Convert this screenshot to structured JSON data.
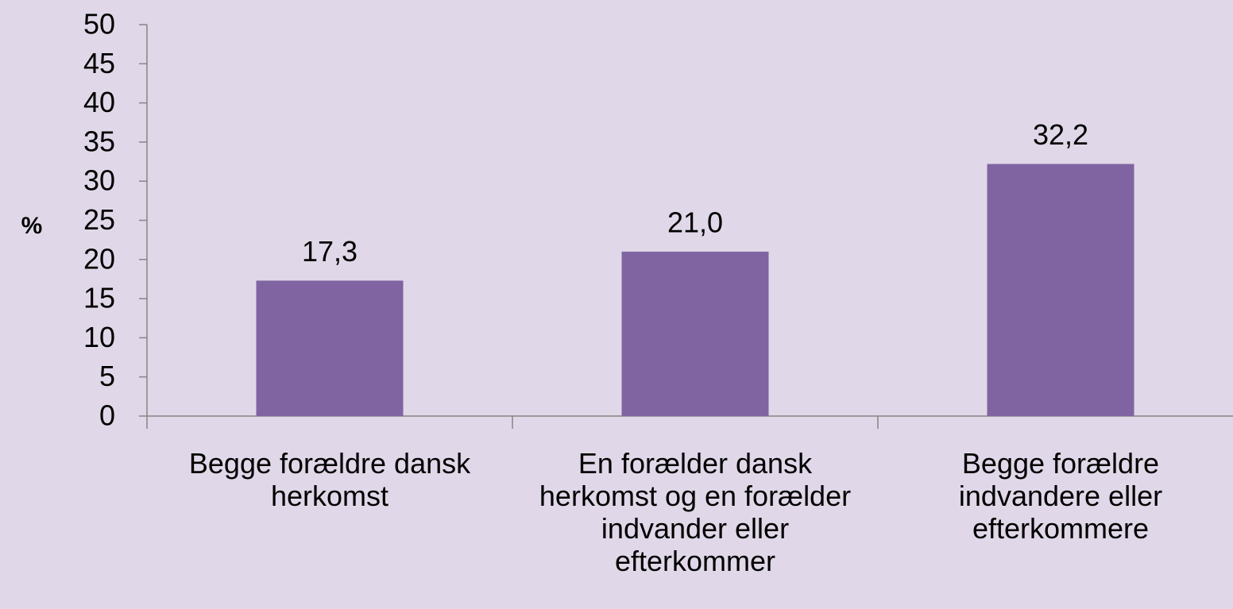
{
  "chart_data": {
    "type": "bar",
    "ylabel": "%",
    "categories": [
      "Begge forældre dansk herkomst",
      "En forælder dansk herkomst og en forælder indvander eller efterkommer",
      "Begge forældre indvandere eller efterkommere"
    ],
    "values": [
      17.3,
      21.0,
      32.2
    ],
    "value_labels": [
      "17,3",
      "21,0",
      "32,2"
    ],
    "color": "#8064a2",
    "ylim": [
      0,
      50
    ],
    "yticks": [
      0,
      5,
      10,
      15,
      20,
      25,
      30,
      35,
      40,
      45,
      50
    ],
    "grid": false
  }
}
